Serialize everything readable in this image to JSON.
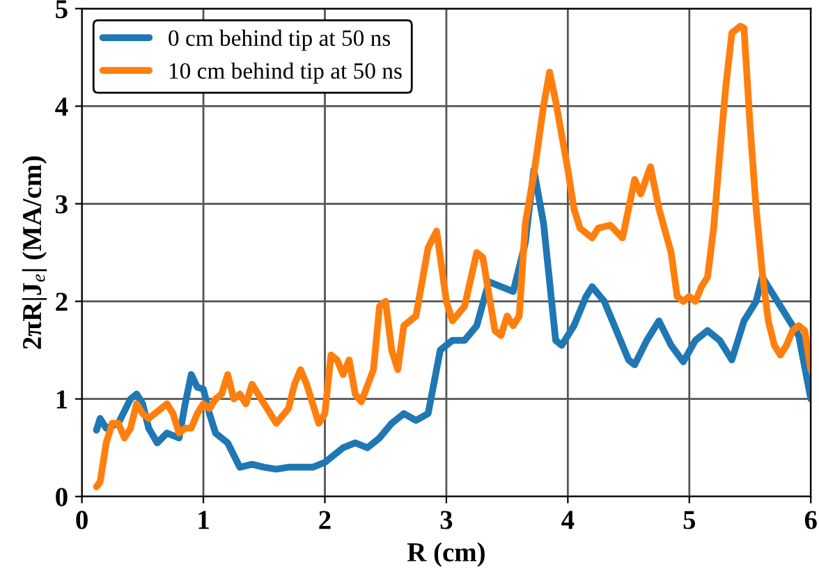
{
  "chart_data": {
    "type": "line",
    "xlabel": "R (cm)",
    "ylabel": "2πR|J$_{e}$| (MA/cm)",
    "xlim": [
      0,
      6
    ],
    "ylim": [
      0,
      5
    ],
    "xticks": [
      0,
      1,
      2,
      3,
      4,
      5,
      6
    ],
    "yticks": [
      0,
      1,
      2,
      3,
      4,
      5
    ],
    "grid": true,
    "legend": "top left",
    "line_style": "solid",
    "marker": "none",
    "series": [
      {
        "name": "0 cm behind tip at 50 ns",
        "color": "#1f77b4",
        "x": [
          0.12,
          0.15,
          0.2,
          0.3,
          0.4,
          0.45,
          0.5,
          0.55,
          0.62,
          0.7,
          0.8,
          0.85,
          0.9,
          0.95,
          1.0,
          1.05,
          1.1,
          1.2,
          1.3,
          1.4,
          1.5,
          1.6,
          1.7,
          1.8,
          1.9,
          2.0,
          2.1,
          2.15,
          2.25,
          2.35,
          2.45,
          2.55,
          2.65,
          2.75,
          2.85,
          2.95,
          3.05,
          3.15,
          3.25,
          3.35,
          3.45,
          3.55,
          3.65,
          3.72,
          3.8,
          3.9,
          3.95,
          4.05,
          4.15,
          4.2,
          4.3,
          4.4,
          4.5,
          4.55,
          4.65,
          4.75,
          4.85,
          4.95,
          5.05,
          5.15,
          5.25,
          5.35,
          5.45,
          5.55,
          5.6,
          5.7,
          5.8,
          5.9,
          6.0
        ],
        "values": [
          0.68,
          0.8,
          0.7,
          0.75,
          1.0,
          1.05,
          0.95,
          0.7,
          0.55,
          0.65,
          0.6,
          0.95,
          1.25,
          1.12,
          1.1,
          0.85,
          0.65,
          0.55,
          0.3,
          0.33,
          0.3,
          0.28,
          0.3,
          0.3,
          0.3,
          0.35,
          0.45,
          0.5,
          0.55,
          0.5,
          0.6,
          0.75,
          0.85,
          0.78,
          0.85,
          1.5,
          1.6,
          1.6,
          1.75,
          2.2,
          2.15,
          2.1,
          2.6,
          3.35,
          2.8,
          1.6,
          1.55,
          1.75,
          2.05,
          2.15,
          2.0,
          1.7,
          1.4,
          1.35,
          1.6,
          1.8,
          1.55,
          1.38,
          1.6,
          1.7,
          1.6,
          1.4,
          1.8,
          2.0,
          2.25,
          2.05,
          1.85,
          1.65,
          1.0
        ]
      },
      {
        "name": "10 cm behind tip at 50 ns",
        "color": "#ff7f0e",
        "x": [
          0.12,
          0.15,
          0.2,
          0.25,
          0.3,
          0.35,
          0.4,
          0.45,
          0.5,
          0.55,
          0.6,
          0.65,
          0.7,
          0.75,
          0.8,
          0.85,
          0.9,
          0.95,
          1.0,
          1.05,
          1.1,
          1.15,
          1.2,
          1.25,
          1.3,
          1.35,
          1.4,
          1.45,
          1.55,
          1.6,
          1.7,
          1.75,
          1.8,
          1.85,
          1.9,
          1.95,
          2.0,
          2.05,
          2.1,
          2.15,
          2.2,
          2.25,
          2.3,
          2.4,
          2.45,
          2.5,
          2.55,
          2.6,
          2.65,
          2.75,
          2.85,
          2.92,
          3.0,
          3.05,
          3.15,
          3.25,
          3.3,
          3.4,
          3.45,
          3.5,
          3.55,
          3.6,
          3.65,
          3.72,
          3.8,
          3.85,
          3.9,
          3.95,
          4.0,
          4.05,
          4.1,
          4.2,
          4.25,
          4.35,
          4.45,
          4.5,
          4.55,
          4.6,
          4.68,
          4.75,
          4.85,
          4.9,
          4.95,
          5.0,
          5.05,
          5.1,
          5.15,
          5.2,
          5.25,
          5.3,
          5.35,
          5.42,
          5.45,
          5.5,
          5.55,
          5.6,
          5.65,
          5.7,
          5.75,
          5.8,
          5.85,
          5.9,
          5.95,
          6.0
        ],
        "values": [
          0.1,
          0.15,
          0.55,
          0.75,
          0.75,
          0.6,
          0.7,
          0.95,
          0.85,
          0.8,
          0.85,
          0.9,
          0.95,
          0.85,
          0.65,
          0.7,
          0.7,
          0.85,
          0.95,
          0.9,
          1.0,
          1.05,
          1.25,
          1.0,
          1.05,
          0.95,
          1.15,
          1.05,
          0.85,
          0.75,
          0.9,
          1.15,
          1.3,
          1.15,
          0.95,
          0.75,
          0.85,
          1.45,
          1.4,
          1.25,
          1.4,
          1.05,
          0.97,
          1.3,
          1.95,
          2.0,
          1.5,
          1.3,
          1.75,
          1.85,
          2.55,
          2.72,
          2.0,
          1.8,
          1.95,
          2.5,
          2.45,
          1.7,
          1.65,
          1.85,
          1.75,
          1.85,
          2.8,
          3.3,
          4.0,
          4.35,
          4.05,
          3.7,
          3.35,
          2.95,
          2.75,
          2.65,
          2.75,
          2.78,
          2.65,
          2.95,
          3.25,
          3.1,
          3.38,
          2.95,
          2.5,
          2.05,
          2.0,
          2.05,
          2.0,
          2.15,
          2.25,
          2.75,
          3.5,
          4.2,
          4.75,
          4.82,
          4.8,
          3.8,
          2.95,
          2.3,
          1.8,
          1.55,
          1.45,
          1.55,
          1.7,
          1.75,
          1.7,
          1.3
        ]
      }
    ]
  }
}
